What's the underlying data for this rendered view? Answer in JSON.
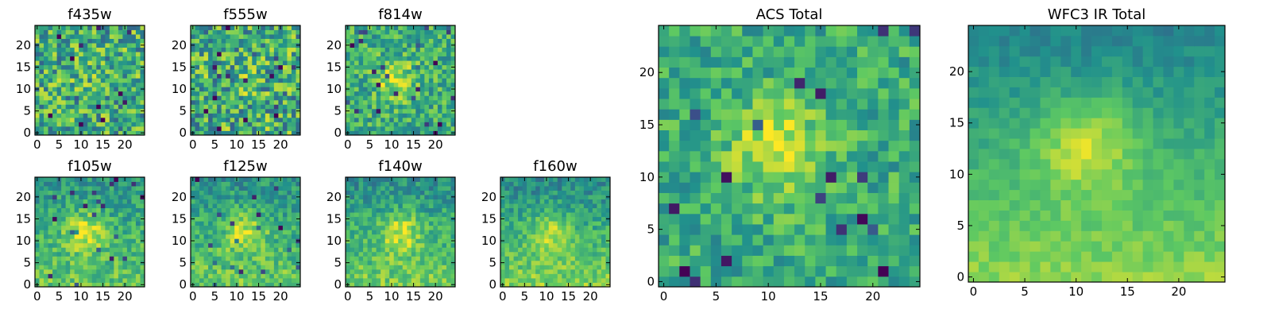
{
  "figure": {
    "description_free": true
  },
  "chart_data": [
    {
      "id": "f435w",
      "type": "heatmap",
      "title": "f435w",
      "grid_size": 25,
      "xlim": [
        0,
        24
      ],
      "ylim": [
        0,
        24
      ],
      "xticks": [
        0,
        5,
        10,
        15,
        20
      ],
      "yticks": [
        0,
        5,
        10,
        15,
        20
      ],
      "center": [
        12,
        12
      ],
      "peak": 0.05,
      "noise": 0.3,
      "gradient": 0.0,
      "seed": 11
    },
    {
      "id": "f555w",
      "type": "heatmap",
      "title": "f555w",
      "grid_size": 25,
      "xlim": [
        0,
        24
      ],
      "ylim": [
        0,
        24
      ],
      "xticks": [
        0,
        5,
        10,
        15,
        20
      ],
      "yticks": [
        0,
        5,
        10,
        15,
        20
      ],
      "center": [
        12,
        12
      ],
      "peak": 0.05,
      "noise": 0.32,
      "gradient": 0.0,
      "seed": 23
    },
    {
      "id": "f814w",
      "type": "heatmap",
      "title": "f814w",
      "grid_size": 25,
      "xlim": [
        0,
        24
      ],
      "ylim": [
        0,
        24
      ],
      "xticks": [
        0,
        5,
        10,
        15,
        20
      ],
      "yticks": [
        0,
        5,
        10,
        15,
        20
      ],
      "center": [
        11,
        12
      ],
      "peak": 0.28,
      "noise": 0.22,
      "gradient": 0.0,
      "seed": 37
    },
    {
      "id": "f105w",
      "type": "heatmap",
      "title": "f105w",
      "grid_size": 25,
      "xlim": [
        0,
        24
      ],
      "ylim": [
        0,
        24
      ],
      "xticks": [
        0,
        5,
        10,
        15,
        20
      ],
      "yticks": [
        0,
        5,
        10,
        15,
        20
      ],
      "center": [
        11,
        12
      ],
      "peak": 0.32,
      "noise": 0.16,
      "gradient": 0.22,
      "seed": 41
    },
    {
      "id": "f125w",
      "type": "heatmap",
      "title": "f125w",
      "grid_size": 25,
      "xlim": [
        0,
        24
      ],
      "ylim": [
        0,
        24
      ],
      "xticks": [
        0,
        5,
        10,
        15,
        20
      ],
      "yticks": [
        0,
        5,
        10,
        15,
        20
      ],
      "center": [
        12,
        12
      ],
      "peak": 0.28,
      "noise": 0.16,
      "gradient": 0.24,
      "seed": 53
    },
    {
      "id": "f140w",
      "type": "heatmap",
      "title": "f140w",
      "grid_size": 25,
      "xlim": [
        0,
        24
      ],
      "ylim": [
        0,
        24
      ],
      "xticks": [
        0,
        5,
        10,
        15,
        20
      ],
      "yticks": [
        0,
        5,
        10,
        15,
        20
      ],
      "center": [
        12,
        12
      ],
      "peak": 0.3,
      "noise": 0.15,
      "gradient": 0.28,
      "seed": 67
    },
    {
      "id": "f160w",
      "type": "heatmap",
      "title": "f160w",
      "grid_size": 25,
      "xlim": [
        0,
        24
      ],
      "ylim": [
        0,
        24
      ],
      "xticks": [
        0,
        5,
        10,
        15,
        20
      ],
      "yticks": [
        0,
        5,
        10,
        15,
        20
      ],
      "center": [
        11,
        12
      ],
      "peak": 0.26,
      "noise": 0.14,
      "gradient": 0.34,
      "seed": 79
    },
    {
      "id": "acs_total",
      "type": "heatmap",
      "title": "ACS Total",
      "grid_size": 25,
      "xlim": [
        0,
        24
      ],
      "ylim": [
        0,
        24
      ],
      "xticks": [
        0,
        5,
        10,
        15,
        20
      ],
      "yticks": [
        0,
        5,
        10,
        15,
        20
      ],
      "center": [
        11,
        13
      ],
      "peak": 0.3,
      "noise": 0.18,
      "gradient": 0.0,
      "seed": 91
    },
    {
      "id": "wfc3_total",
      "type": "heatmap",
      "title": "WFC3 IR Total",
      "grid_size": 25,
      "xlim": [
        0,
        24
      ],
      "ylim": [
        0,
        24
      ],
      "xticks": [
        0,
        5,
        10,
        15,
        20
      ],
      "yticks": [
        0,
        5,
        10,
        15,
        20
      ],
      "center": [
        11,
        13
      ],
      "peak": 0.3,
      "noise": 0.07,
      "gradient": 0.38,
      "seed": 103
    }
  ],
  "colormap": [
    "#440154",
    "#3b528b",
    "#21918c",
    "#5ec962",
    "#fde725"
  ]
}
